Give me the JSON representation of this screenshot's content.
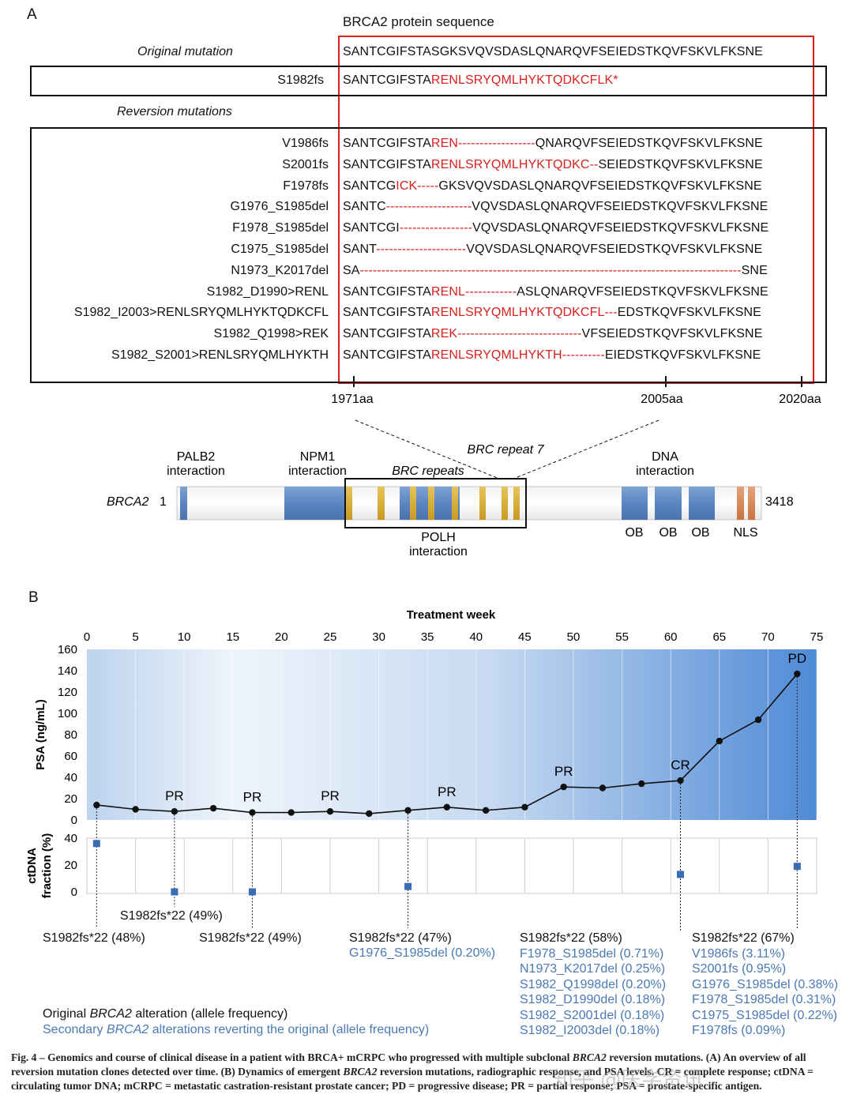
{
  "panel_a": {
    "panel_label": "A",
    "sequence_title": "BRCA2 protein sequence",
    "original_header": "Original mutation",
    "original_seq": "SANTCGIFSTASGKSVQVSDASLQNARQVFSEIEDSTKQVFSKVLFKSNE",
    "fs_row": {
      "label": "S1982fs",
      "normal": "SANTCGIFSTA",
      "mut": "RENLSRYQMLHYKTQDKCFLK*"
    },
    "reversion_header": "Reversion mutations",
    "reversions": [
      {
        "label": "V1986fs",
        "pre": "SANTCGIFSTA",
        "red": "REN------------------",
        "post": "QNARQVFSEIEDSTKQVFSKVLFKSNE"
      },
      {
        "label": "S2001fs",
        "pre": "SANTCGIFSTA",
        "red": "RENLSRYQMLHYKTQDKC--",
        "post": "SEIEDSTKQVFSKVLFKSNE"
      },
      {
        "label": "F1978fs",
        "pre": "SANTCG",
        "red": "ICK-----",
        "post": "GKSVQVSDASLQNARQVFSEIEDSTKQVFSKVLFKSNE"
      },
      {
        "label": "G1976_S1985del",
        "pre": "SANTC",
        "red": "--------------------",
        "post": "VQVSDASLQNARQVFSEIEDSTKQVFSKVLFKSNE"
      },
      {
        "label": "F1978_S1985del",
        "pre": "SANTCGI",
        "red": "-----------------",
        "post": "VQVSDASLQNARQVFSEIEDSTKQVFSKVLFKSNE"
      },
      {
        "label": "C1975_S1985del",
        "pre": "SANT",
        "red": "---------------------",
        "post": "VQVSDASLQNARQVFSEIEDSTKQVFSKVLFKSNE"
      },
      {
        "label": "N1973_K2017del",
        "pre": "SA",
        "red": "-----------------------------------------------------------------------------------------",
        "post": "SNE"
      },
      {
        "label": "S1982_D1990>RENL",
        "pre": "SANTCGIFSTA",
        "red": "RENL------------",
        "post": "ASLQNARQVFSEIEDSTKQVFSKVLFKSNE"
      },
      {
        "label": "S1982_I2003>RENLSRYQMLHYKTQDKCFL",
        "pre": "SANTCGIFSTA",
        "red": "RENLSRYQMLHYKTQDKCFL---",
        "post": "EDSTKQVFSKVLFKSNE"
      },
      {
        "label": "S1982_Q1998>REK",
        "pre": "SANTCGIFSTA",
        "red": "REK-----------------------------",
        "post": "VFSEIEDSTKQVFSKVLFKSNE"
      },
      {
        "label": "S1982_S2001>RENLSRYQMLHYKTH",
        "pre": "SANTCGIFSTA",
        "red": "RENLSRYQMLHYKTH----------",
        "post": "EIEDSTKQVFSKVLFKSNE"
      }
    ],
    "position_ticks": [
      "1971aa",
      "2005aa",
      "2020aa"
    ],
    "domain": {
      "gene": "BRCA2",
      "start": "1",
      "end": "3418",
      "palb2": "PALB2 interaction",
      "npm1": "NPM1 interaction",
      "brc_repeats": "BRC repeats",
      "brc7": "BRC repeat 7",
      "dna": "DNA interaction",
      "polh": "POLH interaction",
      "ob": "OB",
      "nls": "NLS"
    }
  },
  "panel_b": {
    "panel_label": "B",
    "legend_original_pre": "Original ",
    "legend_gene": "BRCA2",
    "legend_original_post": " alteration (allele frequency)",
    "legend_secondary_pre": "Secondary ",
    "legend_secondary_post": " alterations reverting the original (allele frequency)",
    "annotations": [
      {
        "original": "S1982fs*22 (48%)",
        "secondary": []
      },
      {
        "original": "S1982fs*22 (49%)",
        "secondary": []
      },
      {
        "original": "S1982fs*22 (49%)",
        "secondary": []
      },
      {
        "original": "S1982fs*22 (47%)",
        "secondary": [
          "G1976_S1985del (0.20%)"
        ]
      },
      {
        "original": "S1982fs*22 (58%)",
        "secondary": [
          "F1978_S1985del (0.71%)",
          "N1973_K2017del (0.25%)",
          "S1982_Q1998del (0.20%)",
          "S1982_D1990del (0.18%)",
          "S1982_S2001del (0.18%)",
          "S1982_I2003del (0.18%)"
        ]
      },
      {
        "original": "S1982fs*22 (67%)",
        "secondary": [
          "V1986fs (3.11%)",
          "S2001fs (0.95%)",
          "G1976_S1985del (0.38%)",
          "F1978_S1985del (0.31%)",
          "C1975_S1985del (0.22%)",
          "F1978fs (0.09%)"
        ]
      }
    ]
  },
  "chart_data": {
    "type": "line",
    "title": "Treatment week",
    "xlabel": "Treatment week",
    "x_ticks": [
      0,
      5,
      10,
      15,
      20,
      25,
      30,
      35,
      40,
      45,
      50,
      55,
      60,
      65,
      70,
      75
    ],
    "xlim": [
      0,
      75
    ],
    "psa": {
      "ylabel": "PSA (ng/mL)",
      "ylim": [
        0,
        160
      ],
      "y_ticks": [
        0,
        20,
        40,
        60,
        80,
        100,
        120,
        140,
        160
      ],
      "x": [
        1,
        5,
        9,
        13,
        17,
        21,
        25,
        29,
        33,
        37,
        41,
        45,
        49,
        53,
        57,
        61,
        65,
        69,
        73
      ],
      "values": [
        14,
        10,
        8,
        11,
        7,
        7,
        8,
        6,
        9,
        12,
        9,
        12,
        31,
        30,
        34,
        37,
        74,
        94,
        137
      ],
      "response_labels": [
        {
          "x": 9,
          "label": "PR"
        },
        {
          "x": 17,
          "label": "PR"
        },
        {
          "x": 25,
          "label": "PR"
        },
        {
          "x": 37,
          "label": "PR"
        },
        {
          "x": 49,
          "label": "PR"
        },
        {
          "x": 61,
          "label": "CR"
        },
        {
          "x": 73,
          "label": "PD"
        }
      ]
    },
    "ctdna": {
      "ylabel": "ctDNA fraction (%)",
      "ylim": [
        0,
        40
      ],
      "y_ticks": [
        0,
        20,
        40
      ],
      "x": [
        1,
        9,
        17,
        33,
        61,
        73
      ],
      "values": [
        36,
        0,
        0,
        4,
        13,
        19
      ]
    }
  },
  "caption": {
    "fig_label": "Fig. 4 – ",
    "part1": "Genomics and course of clinical disease in a patient with BRCA+ mCRPC who progressed with multiple subclonal ",
    "gene1": "BRCA2",
    "part2": " reversion mutations. (A) An overview of all reversion mutation clones detected over time. (B) Dynamics of emergent ",
    "gene2": "BRCA2",
    "part3": " reversion mutations, radiographic response, and PSA levels. CR = complete response; ctDNA = circulating tumor DNA; mCRPC = metastatic castration-resistant prostate cancer; PD = progressive disease; PR = partial response; PSA = prostate-specific antigen."
  },
  "watermark": "知乎 @医学资讯",
  "colors": {
    "mutation_red": "#d8201e",
    "secondary_blue": "#4a79b4",
    "marker_blue": "#3a6cb4"
  }
}
